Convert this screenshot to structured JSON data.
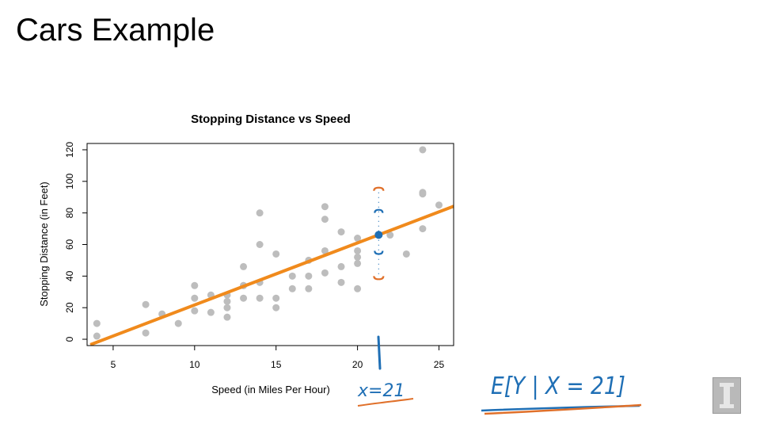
{
  "slide": {
    "title": "Cars Example"
  },
  "chart_data": {
    "type": "scatter",
    "title": "Stopping Distance vs Speed",
    "xlabel": "Speed (in Miles Per Hour)",
    "ylabel": "Stopping Distance (in Feet)",
    "xlim": [
      3.4,
      25.9
    ],
    "ylim": [
      -4,
      124
    ],
    "xticks": [
      5,
      10,
      15,
      20,
      25
    ],
    "yticks": [
      0,
      20,
      40,
      60,
      80,
      100,
      120
    ],
    "points": [
      [
        4,
        2
      ],
      [
        4,
        10
      ],
      [
        7,
        4
      ],
      [
        7,
        22
      ],
      [
        8,
        16
      ],
      [
        9,
        10
      ],
      [
        10,
        18
      ],
      [
        10,
        26
      ],
      [
        10,
        34
      ],
      [
        11,
        17
      ],
      [
        11,
        28
      ],
      [
        12,
        14
      ],
      [
        12,
        20
      ],
      [
        12,
        24
      ],
      [
        12,
        28
      ],
      [
        13,
        26
      ],
      [
        13,
        34
      ],
      [
        13,
        34
      ],
      [
        13,
        46
      ],
      [
        14,
        26
      ],
      [
        14,
        36
      ],
      [
        14,
        60
      ],
      [
        14,
        80
      ],
      [
        15,
        20
      ],
      [
        15,
        26
      ],
      [
        15,
        54
      ],
      [
        16,
        32
      ],
      [
        16,
        40
      ],
      [
        17,
        32
      ],
      [
        17,
        40
      ],
      [
        17,
        50
      ],
      [
        18,
        42
      ],
      [
        18,
        56
      ],
      [
        18,
        76
      ],
      [
        18,
        84
      ],
      [
        19,
        36
      ],
      [
        19,
        46
      ],
      [
        19,
        68
      ],
      [
        20,
        32
      ],
      [
        20,
        48
      ],
      [
        20,
        52
      ],
      [
        20,
        56
      ],
      [
        20,
        64
      ],
      [
        22,
        66
      ],
      [
        23,
        54
      ],
      [
        24,
        70
      ],
      [
        24,
        92
      ],
      [
        24,
        93
      ],
      [
        24,
        120
      ],
      [
        25,
        85
      ]
    ],
    "regression_line": {
      "intercept": -17.58,
      "slope": 3.93,
      "color": "#f08a1c"
    },
    "point_color": "#bdbdbd",
    "highlight_point": {
      "x": 21.3,
      "y": 66.1,
      "color": "#1f6fb5"
    },
    "interval_marks": {
      "x": 21.3,
      "outer": [
        38,
        96
      ],
      "inner": [
        54,
        82
      ],
      "outer_color": "#e0702a",
      "inner_color": "#1f6fb5"
    }
  },
  "annotations": {
    "x_condition": "x=21",
    "expectation": "E[Y | X = 21]"
  },
  "colors": {
    "ink_blue": "#1f6fb5",
    "ink_orange": "#e0702a"
  }
}
